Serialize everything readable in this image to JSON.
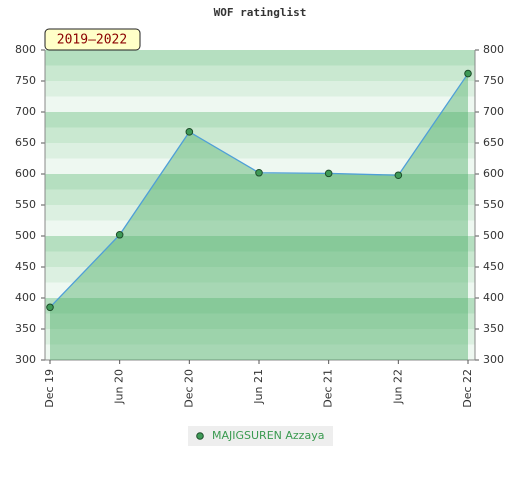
{
  "chart_data": {
    "type": "area",
    "title": "WOF ratinglist",
    "subtitle": "2019–2022",
    "categories": [
      "Dec 19",
      "Jun 20",
      "Dec 20",
      "Jun 21",
      "Dec 21",
      "Jun 22",
      "Dec 22"
    ],
    "series": [
      {
        "name": "MAJIGSUREN Azzaya",
        "color": "#4f9fd8",
        "values": [
          385,
          502,
          668,
          602,
          601,
          598,
          762
        ]
      }
    ],
    "ylim": [
      300,
      800
    ],
    "yticks": [
      300,
      350,
      400,
      450,
      500,
      550,
      600,
      650,
      700,
      750,
      800
    ]
  }
}
